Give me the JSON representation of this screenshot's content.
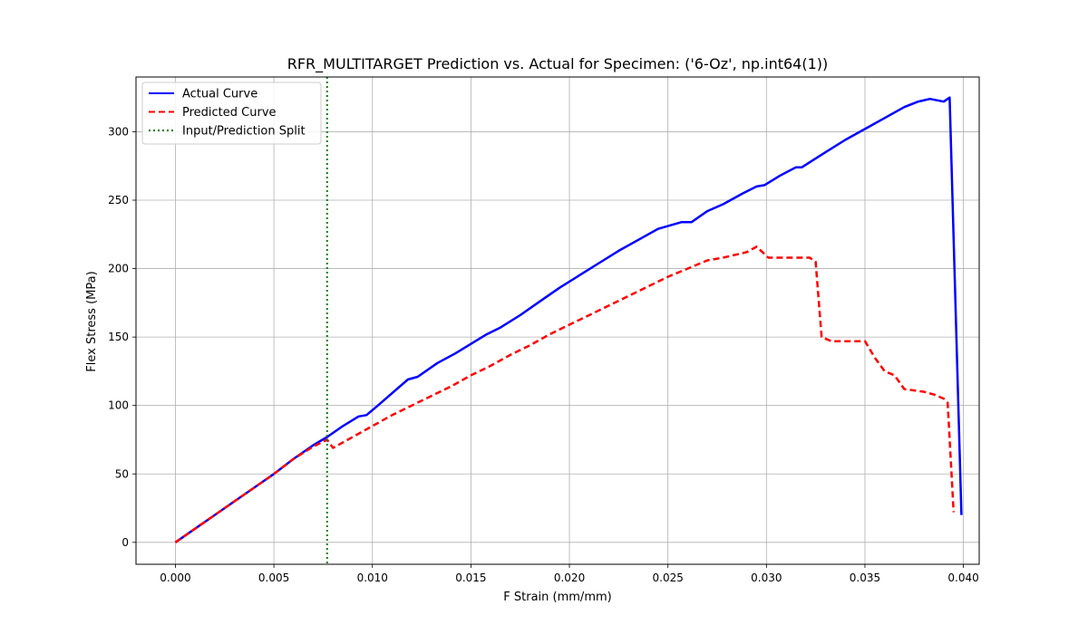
{
  "chart_data": {
    "type": "line",
    "title": "RFR_MULTITARGET Prediction vs. Actual for Specimen: ('6-Oz', np.int64(1))",
    "xlabel": "F Strain (mm/mm)",
    "ylabel": "Flex Stress (MPa)",
    "xlim": [
      -0.002,
      0.0408
    ],
    "ylim": [
      -16,
      340
    ],
    "xticks": [
      0.0,
      0.005,
      0.01,
      0.015,
      0.02,
      0.025,
      0.03,
      0.035,
      0.04
    ],
    "xtick_labels": [
      "0.000",
      "0.005",
      "0.010",
      "0.015",
      "0.020",
      "0.025",
      "0.030",
      "0.035",
      "0.040"
    ],
    "yticks": [
      0,
      50,
      100,
      150,
      200,
      250,
      300
    ],
    "ytick_labels": [
      "0",
      "50",
      "100",
      "150",
      "200",
      "250",
      "300"
    ],
    "grid": true,
    "legend_position": "top-left",
    "series": [
      {
        "name": "Actual Curve",
        "color": "#0000ff",
        "style": "solid",
        "x": [
          0.0,
          0.001,
          0.002,
          0.003,
          0.004,
          0.005,
          0.006,
          0.007,
          0.0077,
          0.0085,
          0.0093,
          0.0097,
          0.0102,
          0.011,
          0.0118,
          0.0123,
          0.0133,
          0.0142,
          0.015,
          0.0158,
          0.0165,
          0.0175,
          0.0185,
          0.0195,
          0.0205,
          0.0215,
          0.0225,
          0.0235,
          0.0245,
          0.0257,
          0.0262,
          0.027,
          0.0278,
          0.0288,
          0.0295,
          0.0299,
          0.0307,
          0.0315,
          0.0318,
          0.033,
          0.034,
          0.035,
          0.036,
          0.037,
          0.0377,
          0.0383,
          0.039,
          0.0393,
          0.0399
        ],
        "y": [
          0,
          10,
          20,
          30,
          40,
          50,
          61,
          71,
          77,
          85,
          92,
          93,
          99,
          109,
          119,
          121,
          131,
          138,
          145,
          152,
          157,
          166,
          176,
          186,
          195,
          204,
          213,
          221,
          229,
          234,
          234,
          242,
          247,
          255,
          260,
          261,
          268,
          274,
          274,
          285,
          294,
          302,
          310,
          318,
          322,
          324,
          322,
          325,
          20
        ]
      },
      {
        "name": "Predicted Curve",
        "color": "#ff0000",
        "style": "dashed",
        "x": [
          0.0,
          0.001,
          0.002,
          0.003,
          0.004,
          0.005,
          0.006,
          0.007,
          0.0077,
          0.008,
          0.009,
          0.01,
          0.011,
          0.012,
          0.013,
          0.014,
          0.015,
          0.016,
          0.017,
          0.018,
          0.019,
          0.02,
          0.021,
          0.022,
          0.023,
          0.024,
          0.025,
          0.026,
          0.027,
          0.0278,
          0.029,
          0.0295,
          0.0301,
          0.0315,
          0.0322,
          0.0325,
          0.0328,
          0.0333,
          0.0345,
          0.035,
          0.0355,
          0.036,
          0.0365,
          0.037,
          0.038,
          0.0385,
          0.039,
          0.0392,
          0.0395
        ],
        "y": [
          0,
          10,
          20,
          30,
          40,
          50,
          61,
          70,
          75,
          69,
          77,
          85,
          93,
          100,
          107,
          114,
          122,
          129,
          137,
          144,
          152,
          159,
          166,
          173,
          180,
          187,
          194,
          200,
          206,
          208,
          212,
          216,
          208,
          208,
          208,
          205,
          150,
          147,
          147,
          147,
          135,
          125,
          122,
          112,
          110,
          108,
          105,
          102,
          22
        ]
      },
      {
        "name": "Input/Prediction Split",
        "color": "#008000",
        "style": "dotted",
        "type": "vline",
        "x_value": 0.0077
      }
    ]
  }
}
